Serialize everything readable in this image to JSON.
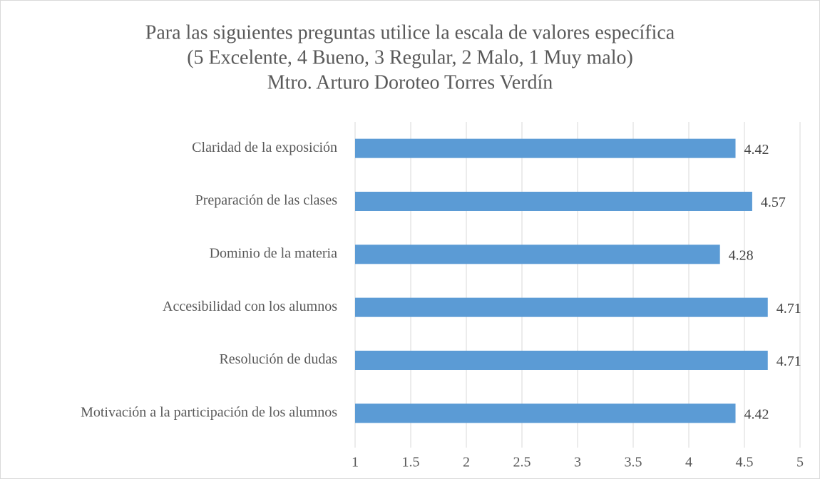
{
  "chart_data": {
    "type": "barh",
    "title": [
      "Para las siguientes preguntas utilice la escala de valores específica",
      "(5 Excelente, 4 Bueno, 3 Regular, 2 Malo, 1 Muy malo)",
      "Mtro. Arturo Doroteo Torres Verdín"
    ],
    "categories": [
      "Claridad de la exposición",
      "Preparación de las clases",
      "Dominio de la materia",
      "Accesibilidad con los alumnos",
      "Resolución de dudas",
      "Motivación a la participación de los alumnos"
    ],
    "values": [
      4.42,
      4.57,
      4.28,
      4.71,
      4.71,
      4.42
    ],
    "color": "#5b9bd5",
    "xlim": [
      1,
      5
    ],
    "xticks": [
      1,
      1.5,
      2,
      2.5,
      3,
      3.5,
      4,
      4.5,
      5
    ],
    "grid": true
  }
}
